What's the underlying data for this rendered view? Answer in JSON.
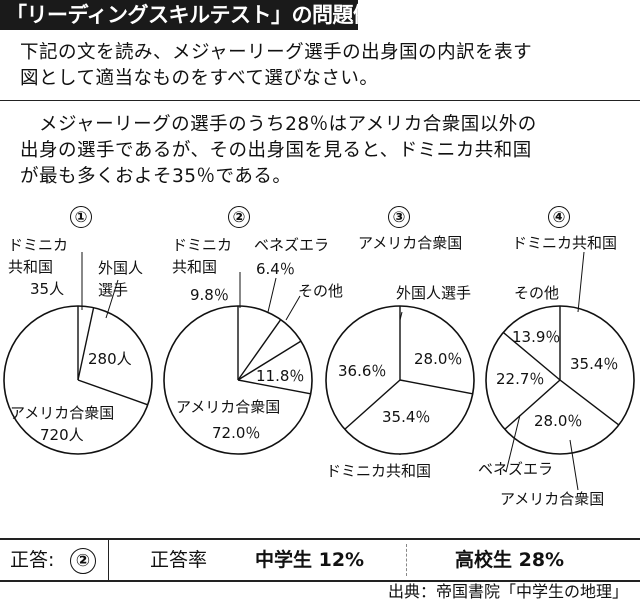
{
  "title": "「リーディングスキルテスト」の問題例",
  "question": {
    "line1": "下記の文を読み、メジャーリーグ選手の出身国の内訳を表す",
    "line2": "図として適当なものをすべて選びなさい。"
  },
  "passage": {
    "line1": "　メジャーリーグの選手のうち28％はアメリカ合衆国以外の",
    "line2": "出身の選手であるが、その出身国を見ると、ドミニカ共和国",
    "line3": "が最も多くおよそ35％である。"
  },
  "charts": [
    {
      "number": "①",
      "labels": {
        "dominican": [
          "ドミニカ",
          "共和国",
          "35人"
        ],
        "foreign": [
          "外国人",
          "選手"
        ],
        "foreign_value": "280人",
        "usa": [
          "アメリカ合衆国",
          "720人"
        ]
      }
    },
    {
      "number": "②",
      "labels": {
        "dominican": [
          "ドミニカ",
          "共和国",
          "9.8％"
        ],
        "venezuela": [
          "ベネズエラ",
          "6.4％"
        ],
        "other": "その他",
        "other_value": "11.8％",
        "usa": [
          "アメリカ合衆国",
          "72.0％"
        ]
      }
    },
    {
      "number": "③",
      "labels": {
        "usa": "アメリカ合衆国",
        "foreign": "外国人選手",
        "foreign_value": "28.0％",
        "left_value": "36.6％",
        "bottom_value": "35.4％",
        "dominican": "ドミニカ共和国"
      }
    },
    {
      "number": "④",
      "labels": {
        "dominican": "ドミニカ共和国",
        "other": "その他",
        "other_value": "13.9％",
        "dominican_value": "35.4％",
        "venezuela_value": "22.7％",
        "usa_value": "28.0％",
        "venezuela": "ベネズエラ",
        "usa": "アメリカ合衆国"
      }
    }
  ],
  "chart_data": [
    {
      "type": "pie",
      "title": "①",
      "slices": [
        {
          "label": "ドミニカ共和国",
          "value": 35
        },
        {
          "label": "外国人選手",
          "value": 280
        },
        {
          "label": "アメリカ合衆国",
          "value": 720
        }
      ]
    },
    {
      "type": "pie",
      "title": "②",
      "slices": [
        {
          "label": "ドミニカ共和国",
          "value": 9.8
        },
        {
          "label": "ベネズエラ",
          "value": 6.4
        },
        {
          "label": "その他",
          "value": 11.8
        },
        {
          "label": "アメリカ合衆国",
          "value": 72.0
        }
      ]
    },
    {
      "type": "pie",
      "title": "③",
      "slices": [
        {
          "label": "外国人選手",
          "value": 28.0
        },
        {
          "label": "ドミニカ共和国",
          "value": 35.4
        },
        {
          "label": "アメリカ合衆国",
          "value": 36.6
        }
      ]
    },
    {
      "type": "pie",
      "title": "④",
      "slices": [
        {
          "label": "ドミニカ共和国",
          "value": 35.4
        },
        {
          "label": "アメリカ合衆国",
          "value": 28.0
        },
        {
          "label": "ベネズエラ",
          "value": 22.7
        },
        {
          "label": "その他",
          "value": 13.9
        }
      ]
    }
  ],
  "answer": {
    "label": "正答:",
    "value": "②",
    "rate_label": "正答率",
    "middle_school": "中学生 12%",
    "high_school": "高校生 28%"
  },
  "source": "出典：帝国書院「中学生の地理」"
}
